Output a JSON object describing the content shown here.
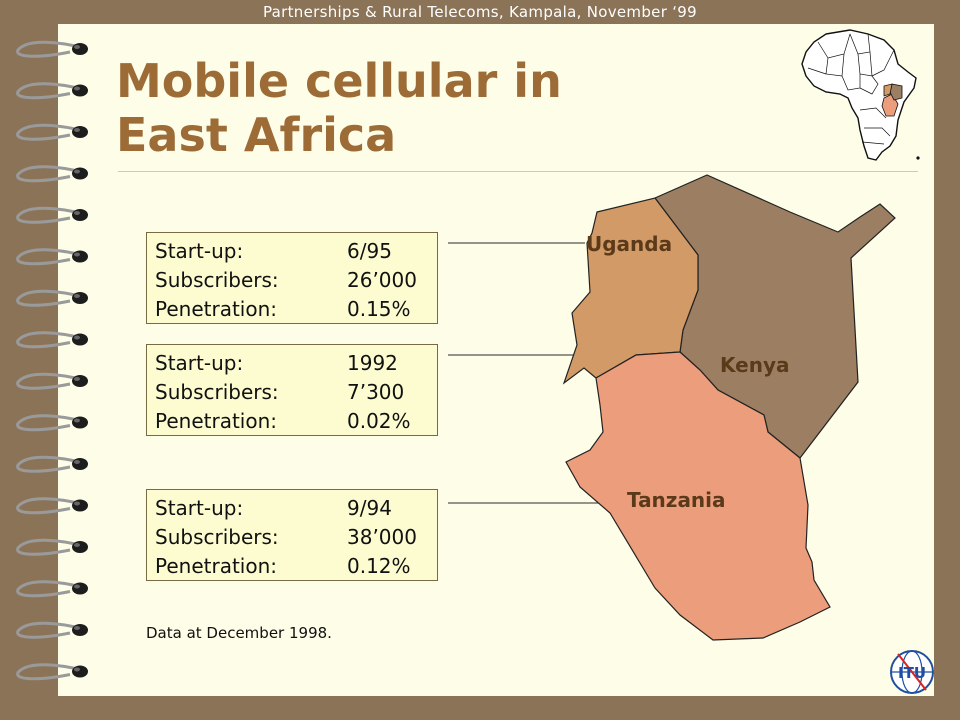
{
  "header": "Partnerships & Rural Telecoms, Kampala, November ‘99",
  "title_line1": "Mobile cellular in",
  "title_line2": "East Africa",
  "labels": {
    "startup": "Start-up:",
    "subscribers": "Subscribers:",
    "penetration": "Penetration:"
  },
  "countries": [
    {
      "name": "Uganda",
      "startup": "6/95",
      "subscribers": "26’000",
      "penetration": "0.15%"
    },
    {
      "name": "Kenya",
      "startup": "1992",
      "subscribers": "7’300",
      "penetration": "0.02%"
    },
    {
      "name": "Tanzania",
      "startup": "9/94",
      "subscribers": "38’000",
      "penetration": "0.12%"
    }
  ],
  "footnote": "Data at December 1998.",
  "logo_text": "ITU",
  "colors": {
    "uganda": "#d29a66",
    "kenya": "#9c7e62",
    "tanzania": "#ec9d7c",
    "title": "#9c6b36"
  }
}
